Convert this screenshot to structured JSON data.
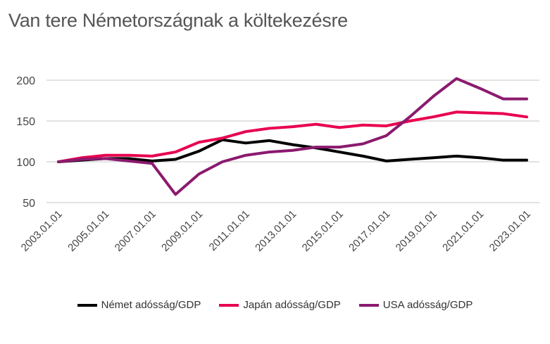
{
  "chart_data": {
    "type": "line",
    "title": "Van tere Németországnak a költekezésre",
    "xlabel": "",
    "ylabel": "",
    "ylim": [
      50,
      200
    ],
    "yticks": [
      "50",
      "100",
      "150",
      "200"
    ],
    "ytick_values": [
      50,
      100,
      150,
      200
    ],
    "x": [
      "2003.01.01",
      "2004.01.01",
      "2005.01.01",
      "2006.01.01",
      "2007.01.01",
      "2008.01.01",
      "2009.01.01",
      "2010.01.01",
      "2011.01.01",
      "2012.01.01",
      "2013.01.01",
      "2014.01.01",
      "2015.01.01",
      "2016.01.01",
      "2017.01.01",
      "2018.01.01",
      "2019.01.01",
      "2020.01.01",
      "2021.01.01",
      "2022.01.01",
      "2023.01.01"
    ],
    "xticks": [
      "2003.01.01",
      "2005.01.01",
      "2007.01.01",
      "2009.01.01",
      "2011.01.01",
      "2013.01.01",
      "2015.01.01",
      "2017.01.01",
      "2019.01.01",
      "2021.01.01",
      "2023.01.01"
    ],
    "grid": true,
    "legend_position": "bottom",
    "series": [
      {
        "name": "Német adósság/GDP",
        "color": "#000000",
        "values": [
          100,
          102,
          104,
          104,
          101,
          103,
          113,
          127,
          123,
          126,
          121,
          117,
          112,
          107,
          101,
          103,
          105,
          107,
          105,
          102,
          102
        ]
      },
      {
        "name": "Japán adósság/GDP",
        "color": "#e8004f",
        "values": [
          100,
          105,
          108,
          108,
          107,
          112,
          124,
          129,
          137,
          141,
          143,
          146,
          142,
          145,
          144,
          150,
          155,
          161,
          160,
          159,
          155
        ]
      },
      {
        "name": "USA adósság/GDP",
        "color": "#8b1a6e",
        "values": [
          100,
          103,
          104,
          101,
          98,
          60,
          85,
          100,
          108,
          112,
          114,
          118,
          118,
          122,
          132,
          155,
          180,
          202,
          190,
          177,
          177
        ]
      }
    ]
  }
}
